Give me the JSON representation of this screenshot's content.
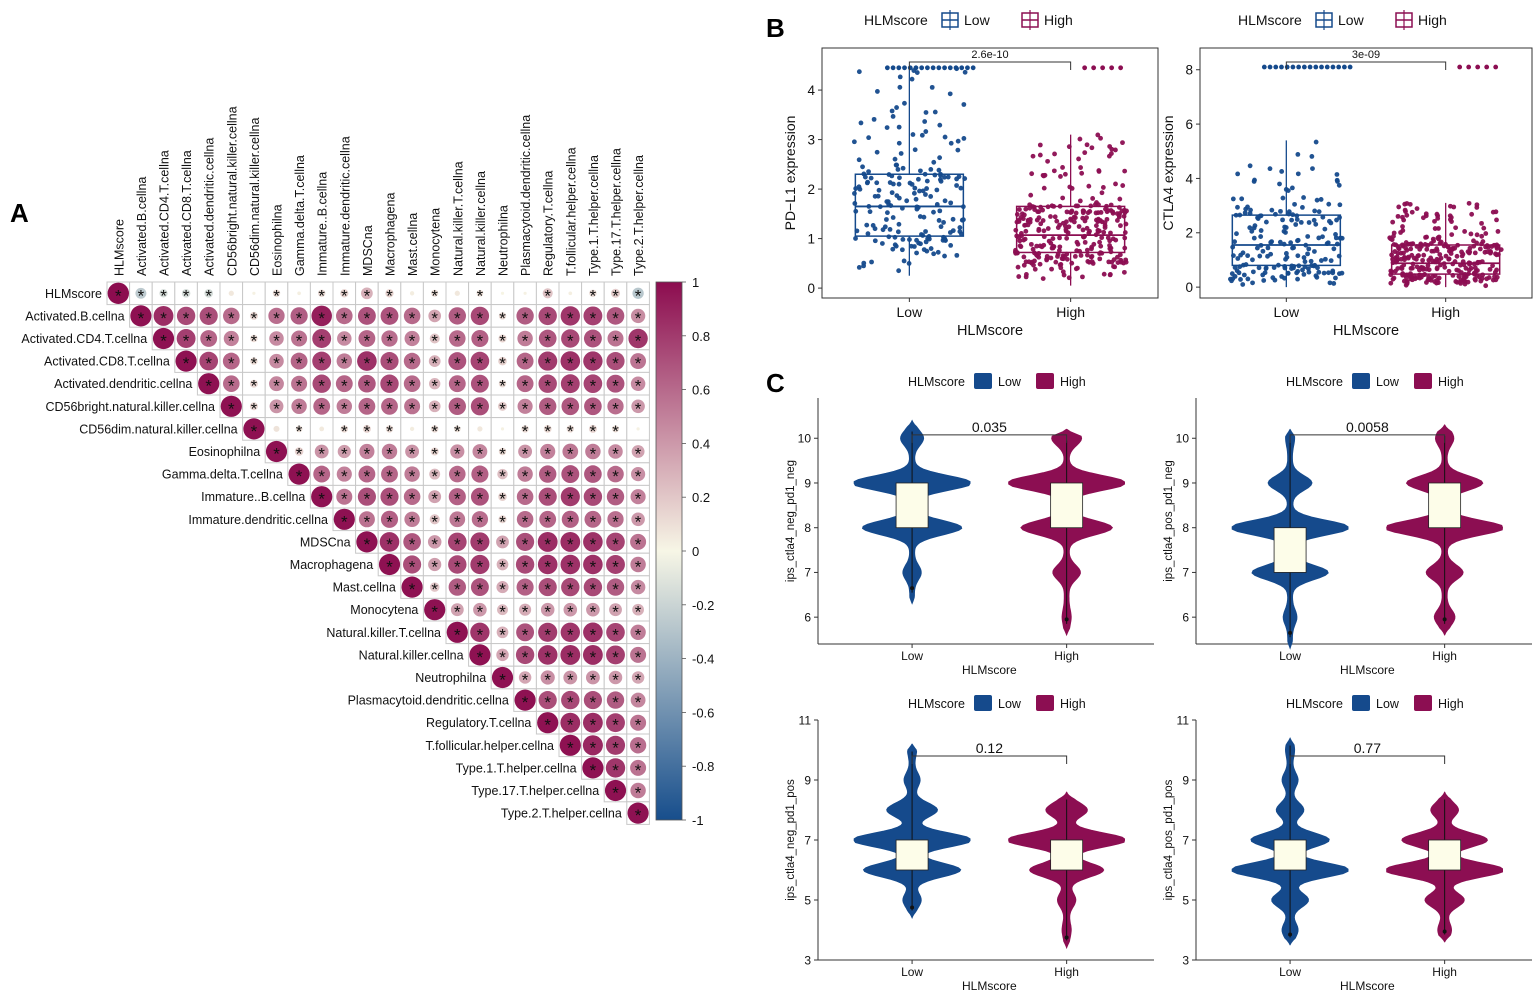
{
  "panels": {
    "A": "A",
    "B": "B",
    "C": "C"
  },
  "colors": {
    "low": "#154a8c",
    "high": "#8c0e52",
    "box_fill": "#fdfde9",
    "grid": "#c8c8c8",
    "neg1": "#174e8c",
    "zero": "#f7f6e6",
    "pos1": "#8c0c4f"
  },
  "chart_data": [
    {
      "type": "heatmap",
      "title": "",
      "subtype": "correlation upper triangle",
      "variables": [
        "HLMscore",
        "Activated.B.cellna",
        "Activated.CD4.T.cellna",
        "Activated.CD8.T.cellna",
        "Activated.dendritic.cellna",
        "CD56bright.natural.killer.cellna",
        "CD56dim.natural.killer.cellna",
        "Eosinophilna",
        "Gamma.delta.T.cellna",
        "Immature..B.cellna",
        "Immature.dendritic.cellna",
        "MDSCna",
        "Macrophagena",
        "Mast.cellna",
        "Monocytena",
        "Natural.killer.T.cellna",
        "Natural.killer.cellna",
        "Neutrophilna",
        "Plasmacytoid.dendritic.cellna",
        "Regulatory.T.cellna",
        "T.follicular.helper.cellna",
        "Type.1.T.helper.cellna",
        "Type.17.T.helper.cellna",
        "Type.2.T.helper.cellna"
      ],
      "significance_marker": "*",
      "colorbar": {
        "ticks": [
          "1",
          "0.8",
          "0.6",
          "0.4",
          "0.2",
          "0",
          "-0.2",
          "-0.4",
          "-0.6",
          "-0.8",
          "-1"
        ],
        "range": [
          -1,
          1
        ]
      },
      "rows": [
        [
          1.0,
          -0.26,
          -0.15,
          -0.16,
          -0.16,
          0.06,
          0.02,
          0.12,
          0.03,
          0.12,
          0.15,
          0.3,
          0.15,
          0.04,
          0.11,
          0.06,
          0.1,
          0.01,
          0.02,
          0.22,
          0.03,
          0.12,
          0.18,
          -0.28
        ],
        [
          null,
          0.98,
          0.86,
          0.74,
          0.72,
          0.6,
          0.14,
          0.58,
          0.65,
          0.92,
          0.6,
          0.7,
          0.7,
          0.6,
          0.35,
          0.66,
          0.74,
          0.12,
          0.66,
          0.74,
          0.82,
          0.78,
          0.68,
          0.45
        ],
        [
          null,
          null,
          0.98,
          0.78,
          0.62,
          0.5,
          0.12,
          0.46,
          0.56,
          0.78,
          0.46,
          0.62,
          0.58,
          0.5,
          0.22,
          0.6,
          0.64,
          0.14,
          0.52,
          0.68,
          0.74,
          0.7,
          0.56,
          0.82
        ],
        [
          null,
          null,
          null,
          0.98,
          0.76,
          0.62,
          0.12,
          0.46,
          0.62,
          0.78,
          0.52,
          0.84,
          0.72,
          0.6,
          0.3,
          0.7,
          0.76,
          0.16,
          0.62,
          0.8,
          0.84,
          0.82,
          0.72,
          0.55
        ],
        [
          null,
          null,
          null,
          null,
          0.98,
          0.6,
          0.14,
          0.48,
          0.56,
          0.74,
          0.62,
          0.68,
          0.74,
          0.6,
          0.28,
          0.62,
          0.7,
          0.12,
          0.62,
          0.74,
          0.78,
          0.76,
          0.7,
          0.46
        ],
        [
          null,
          null,
          null,
          null,
          null,
          0.98,
          0.14,
          0.42,
          0.52,
          0.62,
          0.52,
          0.62,
          0.62,
          0.56,
          0.3,
          0.66,
          0.72,
          0.18,
          0.5,
          0.66,
          0.68,
          0.68,
          0.58,
          0.4
        ],
        [
          null,
          null,
          null,
          null,
          null,
          null,
          0.98,
          0.08,
          0.1,
          0.05,
          0.12,
          0.14,
          0.12,
          0.04,
          0.12,
          0.1,
          0.06,
          0.02,
          0.12,
          0.13,
          0.12,
          0.14,
          0.11,
          0.02
        ],
        [
          null,
          null,
          null,
          null,
          null,
          null,
          null,
          0.98,
          0.16,
          0.42,
          0.38,
          0.5,
          0.52,
          0.42,
          0.14,
          0.44,
          0.48,
          0.12,
          0.42,
          0.5,
          0.54,
          0.52,
          0.46,
          0.36
        ],
        [
          null,
          null,
          null,
          null,
          null,
          null,
          null,
          null,
          0.98,
          0.62,
          0.5,
          0.62,
          0.62,
          0.52,
          0.26,
          0.6,
          0.64,
          0.24,
          0.52,
          0.66,
          0.7,
          0.68,
          0.6,
          0.44
        ],
        [
          null,
          null,
          null,
          null,
          null,
          null,
          null,
          null,
          null,
          0.98,
          0.56,
          0.72,
          0.72,
          0.6,
          0.36,
          0.64,
          0.7,
          0.16,
          0.6,
          0.72,
          0.8,
          0.74,
          0.66,
          0.5
        ],
        [
          null,
          null,
          null,
          null,
          null,
          null,
          null,
          null,
          null,
          null,
          0.98,
          0.56,
          0.64,
          0.52,
          0.22,
          0.54,
          0.58,
          0.14,
          0.6,
          0.62,
          0.64,
          0.62,
          0.58,
          0.4
        ],
        [
          null,
          null,
          null,
          null,
          null,
          null,
          null,
          null,
          null,
          null,
          null,
          0.98,
          0.84,
          0.68,
          0.4,
          0.76,
          0.8,
          0.36,
          0.72,
          0.86,
          0.86,
          0.84,
          0.76,
          0.56
        ],
        [
          null,
          null,
          null,
          null,
          null,
          null,
          null,
          null,
          null,
          null,
          null,
          null,
          0.98,
          0.72,
          0.38,
          0.74,
          0.8,
          0.3,
          0.74,
          0.84,
          0.84,
          0.84,
          0.78,
          0.52
        ],
        [
          null,
          null,
          null,
          null,
          null,
          null,
          null,
          null,
          null,
          null,
          null,
          null,
          null,
          0.98,
          0.2,
          0.66,
          0.7,
          0.32,
          0.64,
          0.72,
          0.74,
          0.74,
          0.66,
          0.46
        ],
        [
          null,
          null,
          null,
          null,
          null,
          null,
          null,
          null,
          null,
          null,
          null,
          null,
          null,
          null,
          0.98,
          0.36,
          0.4,
          0.26,
          0.32,
          0.4,
          0.4,
          0.4,
          0.36,
          0.3
        ],
        [
          null,
          null,
          null,
          null,
          null,
          null,
          null,
          null,
          null,
          null,
          null,
          null,
          null,
          null,
          null,
          0.98,
          0.82,
          0.3,
          0.7,
          0.8,
          0.82,
          0.84,
          0.76,
          0.52
        ],
        [
          null,
          null,
          null,
          null,
          null,
          null,
          null,
          null,
          null,
          null,
          null,
          null,
          null,
          null,
          null,
          null,
          0.98,
          0.34,
          0.74,
          0.84,
          0.86,
          0.86,
          0.78,
          0.56
        ],
        [
          null,
          null,
          null,
          null,
          null,
          null,
          null,
          null,
          null,
          null,
          null,
          null,
          null,
          null,
          null,
          null,
          null,
          0.98,
          0.34,
          0.44,
          0.42,
          0.42,
          0.4,
          0.34
        ],
        [
          null,
          null,
          null,
          null,
          null,
          null,
          null,
          null,
          null,
          null,
          null,
          null,
          null,
          null,
          null,
          null,
          null,
          null,
          0.98,
          0.72,
          0.74,
          0.72,
          0.66,
          0.48
        ],
        [
          null,
          null,
          null,
          null,
          null,
          null,
          null,
          null,
          null,
          null,
          null,
          null,
          null,
          null,
          null,
          null,
          null,
          null,
          null,
          0.98,
          0.86,
          0.86,
          0.78,
          0.56
        ],
        [
          null,
          null,
          null,
          null,
          null,
          null,
          null,
          null,
          null,
          null,
          null,
          null,
          null,
          null,
          null,
          null,
          null,
          null,
          null,
          null,
          0.98,
          0.88,
          0.8,
          0.58
        ],
        [
          null,
          null,
          null,
          null,
          null,
          null,
          null,
          null,
          null,
          null,
          null,
          null,
          null,
          null,
          null,
          null,
          null,
          null,
          null,
          null,
          null,
          0.98,
          0.82,
          0.56
        ],
        [
          null,
          null,
          null,
          null,
          null,
          null,
          null,
          null,
          null,
          null,
          null,
          null,
          null,
          null,
          null,
          null,
          null,
          null,
          null,
          null,
          null,
          null,
          0.98,
          0.52
        ],
        [
          null,
          null,
          null,
          null,
          null,
          null,
          null,
          null,
          null,
          null,
          null,
          null,
          null,
          null,
          null,
          null,
          null,
          null,
          null,
          null,
          null,
          null,
          null,
          0.98
        ]
      ]
    },
    {
      "type": "scatter",
      "subtype": "boxplot with jitter",
      "legend_title": "HLMscore",
      "legend": [
        "Low",
        "High"
      ],
      "xlabel": "HLMscore",
      "ylabel": "PD−L1 expression",
      "categories": [
        "Low",
        "High"
      ],
      "ylim": [
        -0.2,
        4.85
      ],
      "yticks": [
        "0",
        "1",
        "2",
        "3",
        "4"
      ],
      "pvalue": "2.6e-10",
      "boxes": [
        {
          "group": "Low",
          "min": 0.25,
          "q1": 1.05,
          "median": 1.65,
          "q3": 2.3,
          "max": 4.45
        },
        {
          "group": "High",
          "min": 0.05,
          "q1": 0.72,
          "median": 1.07,
          "q3": 1.65,
          "max": 3.1
        }
      ]
    },
    {
      "type": "scatter",
      "subtype": "boxplot with jitter",
      "legend_title": "HLMscore",
      "legend": [
        "Low",
        "High"
      ],
      "xlabel": "HLMscore",
      "ylabel": "CTLA4 expression",
      "categories": [
        "Low",
        "High"
      ],
      "ylim": [
        -0.4,
        8.8
      ],
      "yticks": [
        "0",
        "2",
        "4",
        "6",
        "8"
      ],
      "pvalue": "3e-09",
      "boxes": [
        {
          "group": "Low",
          "min": 0.0,
          "q1": 0.8,
          "median": 1.55,
          "q3": 2.65,
          "max": 5.4
        },
        {
          "group": "High",
          "min": 0.0,
          "q1": 0.48,
          "median": 0.88,
          "q3": 1.55,
          "max": 3.1
        }
      ]
    },
    {
      "type": "area",
      "subtype": "violin",
      "legend_title": "HLMscore",
      "legend": [
        "Low",
        "High"
      ],
      "xlabel": "HLMscore",
      "ylabel": "ips_ctla4_neg_pd1_neg",
      "categories": [
        "Low",
        "High"
      ],
      "ylim": [
        5.4,
        10.9
      ],
      "yticks": [
        "6",
        "7",
        "8",
        "9",
        "10"
      ],
      "pvalue": "0.035",
      "boxes": [
        {
          "group": "Low",
          "q1": 8,
          "median": 8.5,
          "q3": 9
        },
        {
          "group": "High",
          "q1": 8,
          "median": 8.5,
          "q3": 9
        }
      ],
      "modes": [
        {
          "group": "Low",
          "ymin": 6.3,
          "ymax": 10.4,
          "peaks": [
            [
              6,
              0.03
            ],
            [
              7,
              0.12
            ],
            [
              8,
              0.82
            ],
            [
              9,
              1.0
            ],
            [
              10,
              0.16
            ]
          ]
        },
        {
          "group": "High",
          "ymin": 5.6,
          "ymax": 10.2,
          "peaks": [
            [
              6,
              0.04
            ],
            [
              7,
              0.2
            ],
            [
              8,
              0.75
            ],
            [
              9,
              1.0
            ],
            [
              10,
              0.22
            ]
          ]
        }
      ]
    },
    {
      "type": "area",
      "subtype": "violin",
      "legend_title": "HLMscore",
      "legend": [
        "Low",
        "High"
      ],
      "xlabel": "HLMscore",
      "ylabel": "ips_ctla4_pos_pd1_neg",
      "categories": [
        "Low",
        "High"
      ],
      "ylim": [
        5.4,
        10.9
      ],
      "yticks": [
        "6",
        "7",
        "8",
        "9",
        "10"
      ],
      "pvalue": "0.0058",
      "boxes": [
        {
          "group": "Low",
          "q1": 7,
          "median": 7.5,
          "q3": 8
        },
        {
          "group": "High",
          "q1": 8,
          "median": 8.5,
          "q3": 9
        }
      ],
      "modes": [
        {
          "group": "Low",
          "ymin": 5.3,
          "ymax": 10.2,
          "peaks": [
            [
              6,
              0.08
            ],
            [
              7,
              0.62
            ],
            [
              8,
              1.0
            ],
            [
              9,
              0.34
            ],
            [
              10,
              0.04
            ]
          ]
        },
        {
          "group": "High",
          "ymin": 5.6,
          "ymax": 10.3,
          "peaks": [
            [
              6,
              0.14
            ],
            [
              7,
              0.28
            ],
            [
              8,
              1.0
            ],
            [
              9,
              0.62
            ],
            [
              10,
              0.12
            ]
          ]
        }
      ]
    },
    {
      "type": "area",
      "subtype": "violin",
      "legend_title": "HLMscore",
      "legend": [
        "Low",
        "High"
      ],
      "xlabel": "HLMscore",
      "ylabel": "ips_ctla4_neg_pd1_pos",
      "categories": [
        "Low",
        "High"
      ],
      "ylim": [
        3,
        11
      ],
      "yticks": [
        "3",
        "5",
        "7",
        "9",
        "11"
      ],
      "pvalue": "0.12",
      "boxes": [
        {
          "group": "Low",
          "q1": 6,
          "median": 6.5,
          "q3": 7
        },
        {
          "group": "High",
          "q1": 6,
          "median": 6.5,
          "q3": 7
        }
      ],
      "modes": [
        {
          "group": "Low",
          "ymin": 4.4,
          "ymax": 10.2,
          "peaks": [
            [
              5,
              0.12
            ],
            [
              6,
              0.8
            ],
            [
              7,
              1.0
            ],
            [
              8,
              0.4
            ],
            [
              9,
              0.1
            ],
            [
              10,
              0.04
            ]
          ]
        },
        {
          "group": "High",
          "ymin": 3.4,
          "ymax": 8.6,
          "peaks": [
            [
              4,
              0.04
            ],
            [
              5,
              0.12
            ],
            [
              6,
              0.6
            ],
            [
              7,
              1.0
            ],
            [
              8,
              0.32
            ]
          ]
        }
      ]
    },
    {
      "type": "area",
      "subtype": "violin",
      "legend_title": "HLMscore",
      "legend": [
        "Low",
        "High"
      ],
      "xlabel": "HLMscore",
      "ylabel": "ips_ctla4_pos_pd1_pos",
      "categories": [
        "Low",
        "High"
      ],
      "ylim": [
        3,
        11
      ],
      "yticks": [
        "3",
        "5",
        "7",
        "9",
        "11"
      ],
      "pvalue": "0.77",
      "boxes": [
        {
          "group": "Low",
          "q1": 6,
          "median": 6.5,
          "q3": 7
        },
        {
          "group": "High",
          "q1": 6,
          "median": 6.5,
          "q3": 7
        }
      ],
      "modes": [
        {
          "group": "Low",
          "ymin": 3.5,
          "ymax": 10.4,
          "peaks": [
            [
              4,
              0.1
            ],
            [
              5,
              0.28
            ],
            [
              6,
              1.0
            ],
            [
              7,
              0.64
            ],
            [
              8,
              0.2
            ],
            [
              9,
              0.1
            ],
            [
              10,
              0.04
            ]
          ]
        },
        {
          "group": "High",
          "ymin": 3.6,
          "ymax": 8.6,
          "peaks": [
            [
              4,
              0.08
            ],
            [
              5,
              0.3
            ],
            [
              6,
              1.0
            ],
            [
              7,
              0.7
            ],
            [
              8,
              0.2
            ]
          ]
        }
      ]
    }
  ]
}
